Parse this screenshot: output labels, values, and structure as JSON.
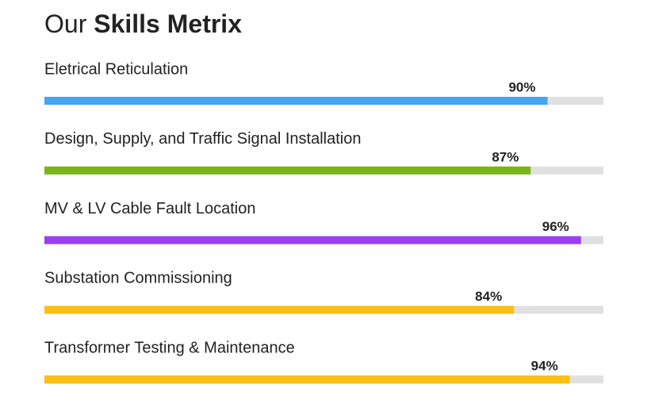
{
  "chart_data": {
    "type": "bar",
    "orientation": "horizontal",
    "title": {
      "plain": "Our",
      "bold": "Skills Metrix"
    },
    "categories": [
      "Eletrical Reticulation",
      "Design, Supply, and Traffic Signal Installation",
      "MV & LV Cable Fault Location",
      "Substation Commissioning",
      "Transformer Testing & Maintenance"
    ],
    "values": [
      90,
      87,
      96,
      84,
      94
    ],
    "value_labels": [
      "90%",
      "87%",
      "96%",
      "84%",
      "94%"
    ],
    "colors": [
      "#42a5f5",
      "#7cb518",
      "#9b3ef5",
      "#fbbf16",
      "#fbbf16"
    ],
    "track_color": "#e0e0e0",
    "xlim": [
      0,
      100
    ]
  }
}
